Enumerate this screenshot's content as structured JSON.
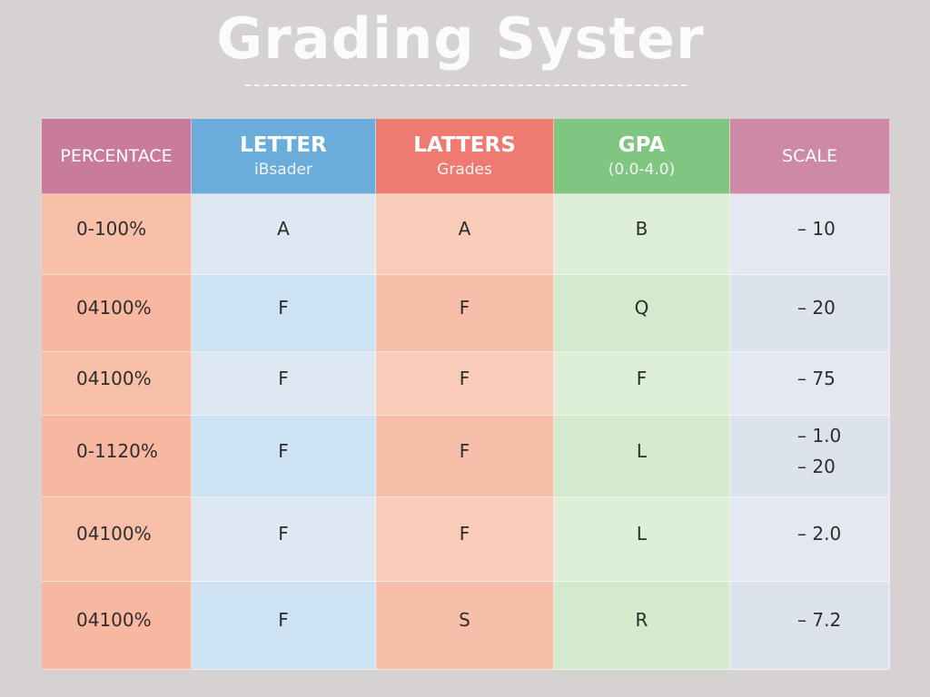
{
  "header": {
    "title": "Grading Syster"
  },
  "table": {
    "columns": [
      {
        "title": "PERCENTACE"
      },
      {
        "title": "LETTER",
        "subtitle": "iBsader"
      },
      {
        "title": "LATTERS",
        "subtitle": "Grades"
      },
      {
        "title": "GPA",
        "subtitle": "(0.0-4.0)"
      },
      {
        "title": "SCALE"
      }
    ],
    "rows": [
      [
        "0-100%",
        "A",
        "A",
        "B",
        [
          "– 10"
        ]
      ],
      [
        "04100%",
        "F",
        "F",
        "Q",
        [
          "– 20"
        ]
      ],
      [
        "04100%",
        "F",
        "F",
        "F",
        [
          "– 75"
        ]
      ],
      [
        "0-1120%",
        "F",
        "F",
        "L",
        [
          "– 1.0",
          "– 20"
        ]
      ],
      [
        "04100%",
        "F",
        "F",
        "L",
        [
          "– 2.0"
        ]
      ],
      [
        "04100%",
        "F",
        "S",
        "R",
        [
          "– 7.2"
        ]
      ]
    ]
  }
}
